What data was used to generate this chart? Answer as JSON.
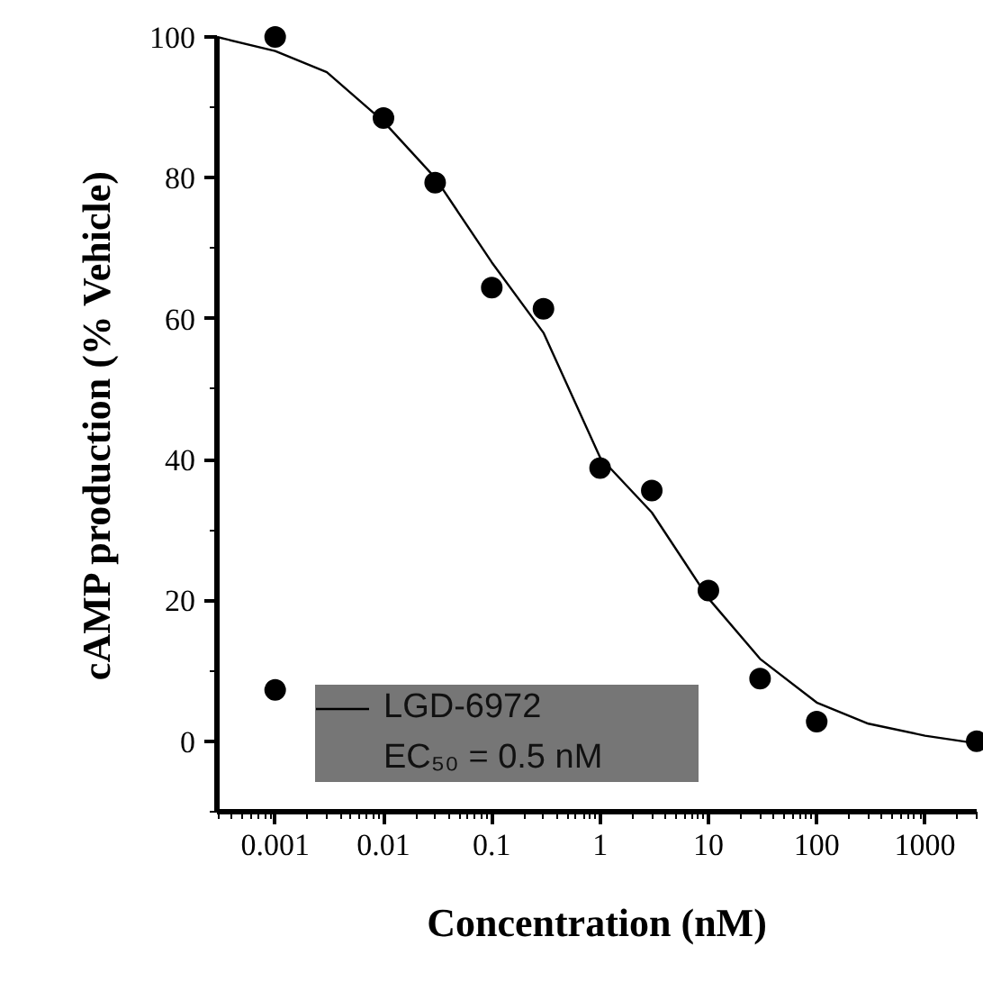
{
  "chart_data": {
    "type": "scatter",
    "xlabel": "Concentration (nM)",
    "ylabel": "cAMP production (% Vehicle)",
    "log": "x",
    "xlim": [
      0.00029,
      3000
    ],
    "xticks": [
      {
        "value": 0.001,
        "label": "0.001"
      },
      {
        "value": 0.01,
        "label": "0.01"
      },
      {
        "value": 0.1,
        "label": "0.1"
      },
      {
        "value": 1,
        "label": "1"
      },
      {
        "value": 10,
        "label": "10"
      },
      {
        "value": 100,
        "label": "100"
      },
      {
        "value": 1000,
        "label": "1000"
      }
    ],
    "ylim": [
      -10,
      100
    ],
    "yticks": [
      0,
      20,
      40,
      60,
      80,
      100
    ],
    "grid": false,
    "legend": "bottom",
    "annotations": [
      "EC₅₀ = 0.5 nM"
    ],
    "series": [
      {
        "color": "#000000",
        "marker": "circle",
        "x": [
          0.001,
          0.001,
          0.01,
          0.03,
          0.1,
          0.3,
          1,
          3,
          10,
          30,
          100,
          3000
        ],
        "values": [
          100,
          7.3,
          88.5,
          79.3,
          64.4,
          61.4,
          38.8,
          35.6,
          21.4,
          8.9,
          2.8,
          0
        ]
      },
      {
        "type": "line",
        "name": "LGD-6972",
        "color": "#000000",
        "x": [
          0.00029,
          0.001,
          0.003,
          0.01,
          0.03,
          0.1,
          0.3,
          1,
          3,
          10,
          30,
          100,
          300,
          1000,
          3000
        ],
        "values": [
          100,
          98,
          95,
          88,
          80,
          68,
          58,
          40.3,
          32.5,
          20.3,
          11.7,
          5.5,
          2.5,
          0.8,
          -0.3
        ]
      }
    ]
  }
}
